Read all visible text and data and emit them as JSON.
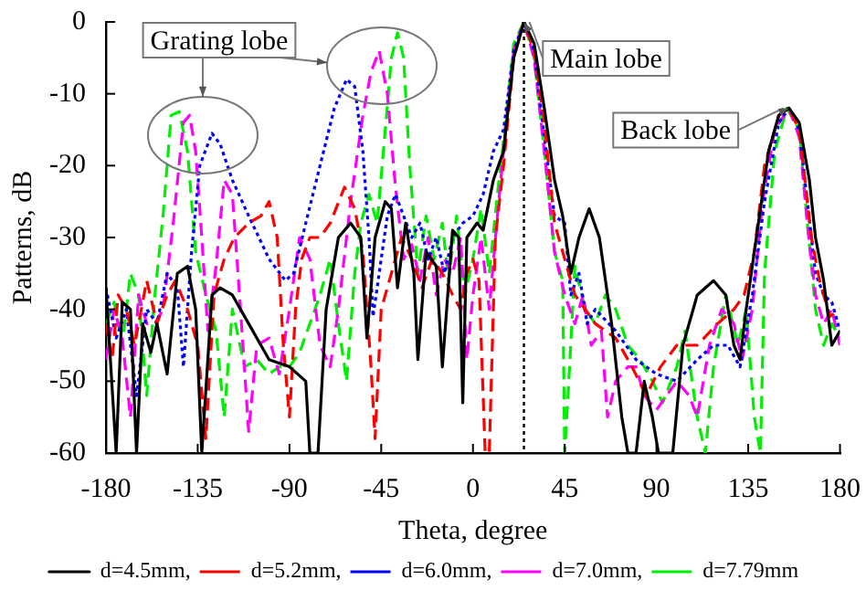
{
  "chart_data": {
    "type": "line",
    "xlabel": "Theta, degree",
    "ylabel": "Patterns, dB",
    "xlim": [
      -180,
      180
    ],
    "xticks": [
      -180,
      -135,
      -90,
      -45,
      0,
      45,
      90,
      135,
      180
    ],
    "ylim": [
      -60,
      0
    ],
    "yticks": [
      -60,
      -50,
      -40,
      -30,
      -20,
      -10,
      0
    ],
    "grid": false,
    "legend": "bottom",
    "marker": "none",
    "ref_lines": [
      {
        "axis": "x",
        "value": 25,
        "color": "#000000",
        "line_style": "dotted"
      }
    ],
    "annotations": [
      "Grating lobe",
      {
        "text": "Main lobe",
        "x": 25,
        "y": 0
      },
      {
        "text": "Back lobe",
        "x": 155,
        "y": -12
      }
    ],
    "series": [
      {
        "name": "d=4.5mm,",
        "color": "#000000",
        "line_style": "solid",
        "x": [
          -180,
          -175,
          -172,
          -168,
          -165,
          -162,
          -158,
          -155,
          -150,
          -145,
          -140,
          -136,
          -133,
          -128,
          -124,
          -118,
          -110,
          -100,
          -90,
          -82,
          -80,
          -76,
          -72,
          -66,
          -60,
          -55,
          -52,
          -48,
          -43,
          -40,
          -37,
          -33,
          -29,
          -27,
          -23,
          -18,
          -15,
          -10,
          -7,
          -5,
          -3,
          2,
          5,
          10,
          15,
          20,
          25,
          30,
          35,
          40,
          44,
          48,
          52,
          57,
          62,
          68,
          73,
          76,
          80,
          84,
          88,
          91,
          98,
          103,
          110,
          118,
          124,
          128,
          131,
          134,
          140,
          145,
          150,
          155,
          160,
          165,
          168,
          172,
          176,
          180
        ],
        "values": [
          -37,
          -60,
          -39,
          -40,
          -60,
          -42,
          -46,
          -42,
          -49,
          -35,
          -34,
          -40,
          -60,
          -38,
          -37,
          -38,
          -42,
          -47,
          -48,
          -50,
          -60,
          -60,
          -40,
          -30,
          -28,
          -30,
          -44,
          -30,
          -25,
          -26,
          -37,
          -28,
          -35,
          -47,
          -32,
          -34,
          -48,
          -29,
          -30,
          -53,
          -30,
          -28,
          -29,
          -22,
          -18,
          -5,
          0,
          -3,
          -12,
          -22,
          -27,
          -35,
          -30,
          -26,
          -30,
          -42,
          -55,
          -60,
          -60,
          -50,
          -55,
          -60,
          -60,
          -45,
          -38,
          -36,
          -38,
          -45,
          -47,
          -40,
          -28,
          -18,
          -13,
          -12,
          -14,
          -22,
          -30,
          -36,
          -45,
          -43
        ]
      },
      {
        "name": "d=5.2mm,",
        "color": "#ff0000",
        "line_style": "dashed",
        "x": [
          -180,
          -177,
          -174,
          -170,
          -166,
          -160,
          -155,
          -150,
          -146,
          -140,
          -135,
          -131,
          -127,
          -122,
          -117,
          -110,
          -104,
          -100,
          -96,
          -93,
          -90,
          -87,
          -84,
          -80,
          -75,
          -70,
          -63,
          -58,
          -54,
          -50,
          -48,
          -45,
          -40,
          -35,
          -30,
          -25,
          -20,
          -15,
          -10,
          -6,
          -3,
          0,
          3,
          6,
          8,
          11,
          15,
          20,
          25,
          30,
          35,
          40,
          45,
          50,
          60,
          70,
          78,
          85,
          92,
          100,
          110,
          120,
          128,
          133,
          138,
          143,
          150,
          155,
          160,
          166,
          170,
          175,
          180
        ],
        "values": [
          -42,
          -47,
          -38,
          -40,
          -45,
          -36,
          -42,
          -38,
          -36,
          -40,
          -45,
          -58,
          -38,
          -33,
          -30,
          -28,
          -27,
          -25,
          -30,
          -45,
          -55,
          -40,
          -33,
          -30,
          -30,
          -28,
          -23,
          -26,
          -32,
          -48,
          -58,
          -40,
          -35,
          -30,
          -33,
          -37,
          -33,
          -35,
          -38,
          -40,
          -35,
          -33,
          -36,
          -60,
          -60,
          -30,
          -20,
          -5,
          0,
          -4,
          -14,
          -28,
          -33,
          -38,
          -42,
          -44,
          -48,
          -52,
          -48,
          -45,
          -45,
          -42,
          -40,
          -38,
          -32,
          -20,
          -13,
          -12,
          -15,
          -30,
          -36,
          -41,
          -40
        ]
      },
      {
        "name": "d=6.0mm,",
        "color": "#0000ff",
        "line_style": "dotted",
        "x": [
          -180,
          -175,
          -170,
          -165,
          -160,
          -155,
          -150,
          -145,
          -142,
          -138,
          -134,
          -128,
          -124,
          -118,
          -110,
          -100,
          -92,
          -88,
          -82,
          -75,
          -68,
          -62,
          -58,
          -54,
          -51,
          -49,
          -46,
          -42,
          -38,
          -34,
          -30,
          -26,
          -22,
          -18,
          -14,
          -10,
          -5,
          0,
          5,
          10,
          15,
          20,
          25,
          30,
          35,
          40,
          45,
          48,
          52,
          56,
          60,
          70,
          80,
          90,
          100,
          110,
          118,
          125,
          131,
          137,
          143,
          150,
          155,
          160,
          164,
          168,
          172,
          176,
          180
        ],
        "values": [
          -37,
          -44,
          -40,
          -52,
          -40,
          -42,
          -35,
          -37,
          -48,
          -32,
          -20,
          -15.5,
          -17,
          -22,
          -27,
          -33,
          -36,
          -35,
          -28,
          -20,
          -12,
          -8,
          -9,
          -18,
          -30,
          -41,
          -35,
          -27,
          -24,
          -27,
          -30,
          -28,
          -33,
          -30,
          -35,
          -30,
          -28,
          -27,
          -24,
          -18,
          -15,
          -4,
          0,
          -4,
          -16,
          -27,
          -28,
          -38,
          -35,
          -42,
          -40,
          -43,
          -47,
          -49,
          -50,
          -47,
          -45,
          -45,
          -48,
          -38,
          -25,
          -14,
          -12,
          -15,
          -25,
          -35,
          -38,
          -39,
          -43
        ]
      },
      {
        "name": "d=7.0mm,",
        "color": "#ff00ff",
        "line_style": "dashed",
        "x": [
          -180,
          -176,
          -172,
          -168,
          -164,
          -160,
          -156,
          -152,
          -147,
          -142,
          -139,
          -136,
          -133,
          -130,
          -126,
          -122,
          -118,
          -114,
          -110,
          -106,
          -100,
          -95,
          -90,
          -85,
          -80,
          -75,
          -70,
          -66,
          -60,
          -54,
          -50,
          -46,
          -42,
          -38,
          -34,
          -30,
          -26,
          -22,
          -18,
          -14,
          -10,
          -6,
          -3,
          0,
          4,
          8,
          12,
          16,
          20,
          25,
          30,
          35,
          40,
          45,
          50,
          54,
          58,
          63,
          66,
          70,
          76,
          80,
          84,
          90,
          95,
          100,
          106,
          110,
          116,
          122,
          128,
          132,
          137,
          142,
          148,
          155,
          160,
          164,
          168,
          172,
          176,
          180
        ],
        "values": [
          -47,
          -40,
          -44,
          -55,
          -38,
          -42,
          -42,
          -40,
          -28,
          -14,
          -13,
          -18,
          -30,
          -43,
          -34,
          -22,
          -24,
          -40,
          -57,
          -45,
          -44,
          -49,
          -40,
          -30,
          -33,
          -45,
          -48,
          -40,
          -25,
          -13,
          -7,
          -4,
          -10,
          -23,
          -33,
          -31,
          -36,
          -30,
          -38,
          -33,
          -35,
          -30,
          -47,
          -38,
          -30,
          -40,
          -27,
          -15,
          -4,
          0,
          -5,
          -18,
          -32,
          -38,
          -42,
          -38,
          -45,
          -43,
          -55,
          -50,
          -48,
          -48,
          -52,
          -54,
          -52,
          -50,
          -52,
          -55,
          -45,
          -40,
          -42,
          -47,
          -40,
          -25,
          -15,
          -12,
          -16,
          -28,
          -38,
          -42,
          -40,
          -45
        ]
      },
      {
        "name": "d=7.79mm",
        "color": "#00ee00",
        "line_style": "dashed",
        "x": [
          -180,
          -176,
          -172,
          -168,
          -164,
          -160,
          -156,
          -152,
          -148,
          -144,
          -140,
          -136,
          -131,
          -126,
          -122,
          -118,
          -112,
          -106,
          -100,
          -95,
          -90,
          -85,
          -80,
          -75,
          -70,
          -66,
          -62,
          -58,
          -55,
          -51,
          -47,
          -43,
          -40,
          -37,
          -34,
          -31,
          -27,
          -23,
          -19,
          -15,
          -12,
          -8,
          -4,
          0,
          4,
          8,
          12,
          16,
          20,
          25,
          30,
          35,
          40,
          44,
          45,
          47,
          50,
          55,
          60,
          65,
          70,
          76,
          82,
          88,
          93,
          100,
          104,
          110,
          114,
          118,
          124,
          130,
          134,
          138,
          141,
          143,
          148,
          154,
          160,
          164,
          168,
          172,
          176,
          180
        ],
        "values": [
          -42,
          -39,
          -45,
          -35,
          -38,
          -52,
          -38,
          -27,
          -13,
          -12.5,
          -18,
          -32,
          -38,
          -43,
          -55,
          -40,
          -48,
          -47,
          -49,
          -48,
          -48,
          -46,
          -42,
          -38,
          -33,
          -42,
          -50,
          -35,
          -28,
          -24,
          -28,
          -15,
          -5,
          -1.5,
          -5,
          -20,
          -35,
          -27,
          -33,
          -28,
          -36,
          -27,
          -38,
          -33,
          -26,
          -35,
          -24,
          -14,
          -3,
          0,
          -5,
          -18,
          -32,
          -36,
          -60,
          -50,
          -34,
          -40,
          -42,
          -38,
          -40,
          -45,
          -47,
          -50,
          -53,
          -48,
          -43,
          -55,
          -60,
          -48,
          -38,
          -45,
          -40,
          -55,
          -60,
          -35,
          -18,
          -12,
          -15,
          -28,
          -40,
          -45,
          -42,
          -44
        ]
      }
    ]
  }
}
